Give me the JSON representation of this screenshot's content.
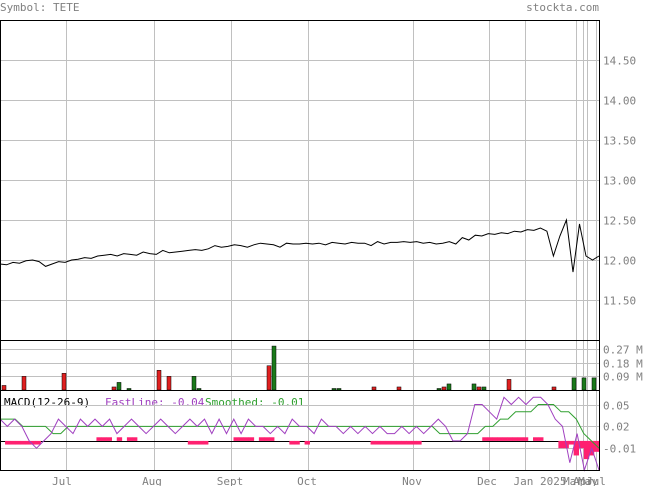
{
  "header": {
    "symbol_label": "Symbol: TETE",
    "site": "stockta.com"
  },
  "chart_data": [
    {
      "type": "line",
      "panel": "price",
      "ylim": [
        11.0,
        15.0
      ],
      "y_ticks": [
        "14.50",
        "14.00",
        "13.50",
        "13.00",
        "12.50",
        "12.00",
        "11.50"
      ],
      "x_ticks": [
        "Jul",
        "Aug",
        "Sept",
        "Oct",
        "Nov",
        "Dec",
        "Jan 2025",
        "Mar",
        "Apr",
        "May",
        "Jul"
      ],
      "grid": true,
      "values": [
        11.95,
        11.94,
        11.97,
        11.96,
        11.99,
        12.0,
        11.98,
        11.92,
        11.95,
        11.98,
        11.97,
        12.0,
        12.01,
        12.03,
        12.02,
        12.05,
        12.06,
        12.07,
        12.05,
        12.08,
        12.07,
        12.06,
        12.1,
        12.08,
        12.07,
        12.12,
        12.09,
        12.1,
        12.11,
        12.12,
        12.13,
        12.12,
        12.14,
        12.18,
        12.16,
        12.17,
        12.19,
        12.18,
        12.16,
        12.19,
        12.21,
        12.2,
        12.19,
        12.16,
        12.21,
        12.2,
        12.2,
        12.21,
        12.2,
        12.21,
        12.19,
        12.22,
        12.21,
        12.2,
        12.22,
        12.21,
        12.21,
        12.18,
        12.23,
        12.2,
        12.22,
        12.22,
        12.23,
        12.22,
        12.23,
        12.21,
        12.22,
        12.2,
        12.21,
        12.23,
        12.2,
        12.28,
        12.25,
        12.31,
        12.3,
        12.33,
        12.32,
        12.34,
        12.33,
        12.36,
        12.35,
        12.38,
        12.37,
        12.4,
        12.36,
        12.05,
        12.3,
        12.5,
        11.85,
        12.45,
        12.05,
        12.0,
        12.05
      ]
    },
    {
      "type": "bar",
      "panel": "volume",
      "y_ticks": [
        "0.27 M",
        "0.18 M",
        "0.09 M"
      ],
      "ylim": [
        0,
        0.33
      ],
      "bars": [
        {
          "x": 2,
          "v": 0.03,
          "dir": "down"
        },
        {
          "x": 22,
          "v": 0.09,
          "dir": "down"
        },
        {
          "x": 62,
          "v": 0.11,
          "dir": "down"
        },
        {
          "x": 112,
          "v": 0.02,
          "dir": "down"
        },
        {
          "x": 117,
          "v": 0.05,
          "dir": "up"
        },
        {
          "x": 127,
          "v": 0.01,
          "dir": "up"
        },
        {
          "x": 157,
          "v": 0.13,
          "dir": "down"
        },
        {
          "x": 167,
          "v": 0.09,
          "dir": "down"
        },
        {
          "x": 192,
          "v": 0.09,
          "dir": "up"
        },
        {
          "x": 197,
          "v": 0.01,
          "dir": "up"
        },
        {
          "x": 267,
          "v": 0.16,
          "dir": "down"
        },
        {
          "x": 272,
          "v": 0.29,
          "dir": "up"
        },
        {
          "x": 332,
          "v": 0.01,
          "dir": "up"
        },
        {
          "x": 337,
          "v": 0.01,
          "dir": "up"
        },
        {
          "x": 372,
          "v": 0.02,
          "dir": "down"
        },
        {
          "x": 397,
          "v": 0.02,
          "dir": "down"
        },
        {
          "x": 437,
          "v": 0.01,
          "dir": "up"
        },
        {
          "x": 442,
          "v": 0.02,
          "dir": "down"
        },
        {
          "x": 447,
          "v": 0.04,
          "dir": "up"
        },
        {
          "x": 472,
          "v": 0.04,
          "dir": "up"
        },
        {
          "x": 477,
          "v": 0.02,
          "dir": "down"
        },
        {
          "x": 482,
          "v": 0.02,
          "dir": "up"
        },
        {
          "x": 507,
          "v": 0.07,
          "dir": "down"
        },
        {
          "x": 552,
          "v": 0.02,
          "dir": "down"
        },
        {
          "x": 572,
          "v": 0.08,
          "dir": "up"
        },
        {
          "x": 582,
          "v": 0.08,
          "dir": "up"
        },
        {
          "x": 592,
          "v": 0.08,
          "dir": "up"
        }
      ]
    },
    {
      "type": "line",
      "panel": "macd",
      "title": "MACD(12-26-9)",
      "fast_label": "FastLine: -0.04",
      "smooth_label": "Smoothed: -0.01",
      "y_ticks": [
        "0.05",
        "0.02",
        "-0.01"
      ],
      "ylim": [
        -0.04,
        0.07
      ],
      "fast_values": [
        0.03,
        0.02,
        0.03,
        0.02,
        0.0,
        -0.01,
        0.0,
        0.01,
        0.03,
        0.02,
        0.01,
        0.03,
        0.02,
        0.03,
        0.02,
        0.03,
        0.01,
        0.02,
        0.03,
        0.02,
        0.01,
        0.02,
        0.03,
        0.02,
        0.01,
        0.02,
        0.03,
        0.02,
        0.03,
        0.01,
        0.03,
        0.01,
        0.03,
        0.01,
        0.03,
        0.02,
        0.02,
        0.01,
        0.02,
        0.01,
        0.03,
        0.02,
        0.02,
        0.01,
        0.03,
        0.02,
        0.02,
        0.01,
        0.02,
        0.01,
        0.02,
        0.01,
        0.02,
        0.01,
        0.01,
        0.02,
        0.01,
        0.02,
        0.01,
        0.02,
        0.03,
        0.02,
        0.0,
        0.0,
        0.01,
        0.05,
        0.05,
        0.04,
        0.03,
        0.06,
        0.05,
        0.06,
        0.05,
        0.06,
        0.06,
        0.05,
        0.03,
        0.02,
        -0.03,
        0.01,
        -0.04,
        -0.01,
        -0.04
      ],
      "smooth_values": [
        0.03,
        0.03,
        0.03,
        0.02,
        0.02,
        0.02,
        0.02,
        0.01,
        0.01,
        0.02,
        0.02,
        0.02,
        0.02,
        0.02,
        0.02,
        0.02,
        0.02,
        0.02,
        0.02,
        0.02,
        0.02,
        0.02,
        0.02,
        0.02,
        0.02,
        0.02,
        0.02,
        0.02,
        0.02,
        0.02,
        0.02,
        0.02,
        0.02,
        0.02,
        0.02,
        0.02,
        0.02,
        0.02,
        0.02,
        0.02,
        0.02,
        0.02,
        0.02,
        0.02,
        0.02,
        0.02,
        0.02,
        0.02,
        0.02,
        0.02,
        0.02,
        0.02,
        0.02,
        0.02,
        0.02,
        0.02,
        0.02,
        0.02,
        0.01,
        0.01,
        0.01,
        0.01,
        0.01,
        0.01,
        0.02,
        0.02,
        0.03,
        0.03,
        0.04,
        0.04,
        0.04,
        0.05,
        0.05,
        0.05,
        0.04,
        0.04,
        0.03,
        0.01,
        0.0,
        -0.01
      ],
      "hist_values": [
        0.0,
        -0.005,
        -0.005,
        -0.005,
        -0.005,
        -0.005,
        -0.005,
        -0.005,
        0.0,
        0.0,
        0.0,
        0.0,
        0.0,
        0.0,
        0.0,
        0.0,
        0.0,
        0.0,
        0.0,
        0.005,
        0.005,
        0.005,
        0.0,
        0.005,
        0.0,
        0.005,
        0.005,
        0.0,
        0.0,
        0.0,
        0.0,
        0.0,
        0.0,
        0.0,
        0.0,
        0.0,
        0.0,
        -0.005,
        -0.005,
        -0.005,
        -0.005,
        0.0,
        0.0,
        0.0,
        0.0,
        0.0,
        0.005,
        0.005,
        0.005,
        0.005,
        0.0,
        0.005,
        0.005,
        0.005,
        0.0,
        0.0,
        0.0,
        -0.005,
        -0.005,
        0.0,
        -0.005,
        0.0,
        0.0,
        0.0,
        0.0,
        0.0,
        0.0,
        0.0,
        0.0,
        0.0,
        0.0,
        0.0,
        0.0,
        -0.005,
        -0.005,
        -0.005,
        -0.005,
        -0.005,
        -0.005,
        -0.005,
        -0.005,
        -0.005,
        -0.005,
        0.0,
        0.0,
        0.0,
        0.0,
        0.0,
        0.0,
        0.0,
        0.0,
        0.0,
        0.0,
        0.0,
        0.0,
        0.005,
        0.005,
        0.005,
        0.005,
        0.005,
        0.005,
        0.005,
        0.005,
        0.005,
        0.0,
        0.005,
        0.005,
        0.0,
        0.0,
        0.0,
        -0.01,
        -0.01,
        -0.005,
        -0.02,
        -0.01,
        -0.025,
        -0.02,
        -0.015
      ]
    }
  ],
  "colors": {
    "grid": "#c0c0c0",
    "axis_text": "#808080",
    "price_line": "#000000",
    "vol_up": "#1a7a1a",
    "vol_down": "#e02020",
    "fast_line": "#a040c0",
    "smooth_line": "#30a030",
    "hist": "#ff2070",
    "header_text": "#808080"
  }
}
